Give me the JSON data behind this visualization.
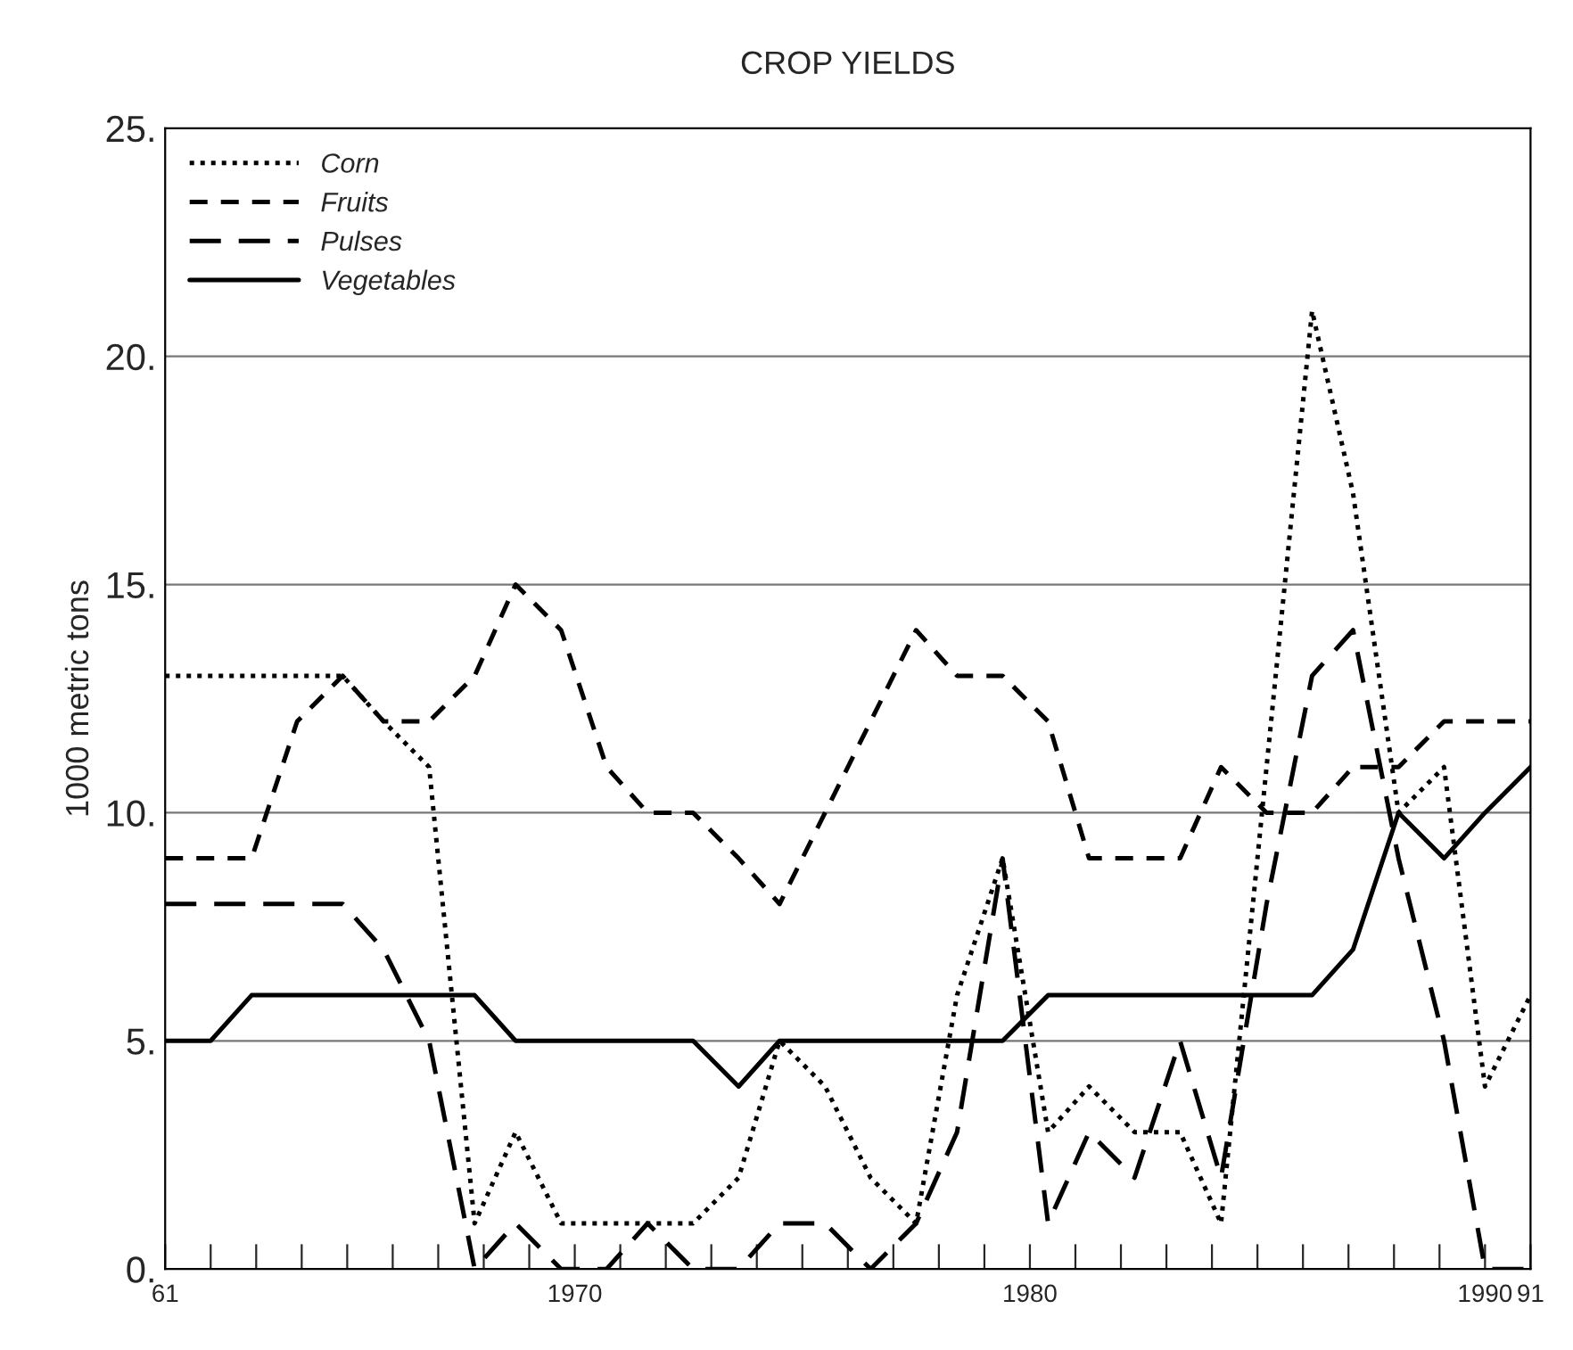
{
  "chart_data": {
    "type": "line",
    "title": "CROP YIELDS",
    "ylabel": "1000 metric tons",
    "x": [
      1961.0,
      1962.0,
      1962.9,
      1963.9,
      1964.9,
      1965.8,
      1966.8,
      1967.8,
      1968.7,
      1969.7,
      1970.7,
      1971.6,
      1972.6,
      1973.6,
      1974.5,
      1975.5,
      1976.5,
      1977.5,
      1978.4,
      1979.4,
      1980.4,
      1981.3,
      1982.3,
      1983.3,
      1984.2,
      1985.2,
      1986.2,
      1987.1,
      1988.1,
      1989.1,
      1990.0,
      1991.0
    ],
    "series": [
      {
        "name": "Corn",
        "color": "#000000",
        "line_style": "dotted",
        "values": [
          13,
          13,
          13,
          13,
          13,
          12,
          11,
          1,
          3,
          1,
          1,
          1,
          1,
          2,
          5,
          4,
          2,
          1,
          6,
          9,
          3,
          4,
          3,
          3,
          1,
          11,
          21,
          17,
          10,
          11,
          4,
          6
        ]
      },
      {
        "name": "Fruits",
        "color": "#000000",
        "line_style": "dashed",
        "values": [
          9,
          9,
          9,
          12,
          13,
          12,
          12,
          13,
          15,
          14,
          11,
          10,
          10,
          9,
          8,
          10,
          12,
          14,
          13,
          13,
          12,
          9,
          9,
          9,
          11,
          10,
          10,
          11,
          11,
          12,
          12,
          12
        ]
      },
      {
        "name": "Pulses",
        "color": "#000000",
        "line_style": "dashed",
        "values": [
          8,
          8,
          8,
          8,
          8,
          7,
          5,
          0,
          1,
          0,
          0,
          1,
          0,
          0,
          1,
          1,
          0,
          1,
          3,
          9,
          1,
          3,
          2,
          5,
          2,
          8,
          13,
          14,
          9,
          5,
          0,
          0
        ]
      },
      {
        "name": "Vegetables",
        "color": "#000000",
        "line_style": "solid",
        "values": [
          5,
          5,
          6,
          6,
          6,
          6,
          6,
          6,
          5,
          5,
          5,
          5,
          5,
          4,
          5,
          5,
          5,
          5,
          5,
          5,
          6,
          6,
          6,
          6,
          6,
          6,
          6,
          7,
          10,
          9,
          10,
          11
        ]
      }
    ],
    "xlim": [
      1961,
      1991
    ],
    "ylim": [
      0,
      25
    ],
    "xticks": [
      {
        "value": 1961,
        "label": "61"
      },
      {
        "value": 1962,
        "label": null
      },
      {
        "value": 1963,
        "label": null
      },
      {
        "value": 1964,
        "label": null
      },
      {
        "value": 1965,
        "label": null
      },
      {
        "value": 1966,
        "label": null
      },
      {
        "value": 1967,
        "label": null
      },
      {
        "value": 1968,
        "label": null
      },
      {
        "value": 1969,
        "label": null
      },
      1970,
      {
        "value": 1971,
        "label": null
      },
      {
        "value": 1972,
        "label": null
      },
      {
        "value": 1973,
        "label": null
      },
      {
        "value": 1974,
        "label": null
      },
      {
        "value": 1975,
        "label": null
      },
      {
        "value": 1976,
        "label": null
      },
      {
        "value": 1977,
        "label": null
      },
      {
        "value": 1978,
        "label": null
      },
      {
        "value": 1979,
        "label": null
      },
      1980,
      {
        "value": 1981,
        "label": null
      },
      {
        "value": 1982,
        "label": null
      },
      {
        "value": 1983,
        "label": null
      },
      {
        "value": 1984,
        "label": null
      },
      {
        "value": 1985,
        "label": null
      },
      {
        "value": 1986,
        "label": null
      },
      {
        "value": 1987,
        "label": null
      },
      {
        "value": 1988,
        "label": null
      },
      {
        "value": 1989,
        "label": null
      },
      1990,
      {
        "value": 1991,
        "label": "91"
      }
    ],
    "yticks": [
      {
        "value": 0,
        "label": "0."
      },
      {
        "value": 5,
        "label": "5."
      },
      {
        "value": 10,
        "label": "10."
      },
      {
        "value": 15,
        "label": "15."
      },
      {
        "value": 20,
        "label": "20."
      },
      {
        "value": 25,
        "label": "25."
      }
    ],
    "grid": "y",
    "legend": "top left",
    "marker": "none"
  }
}
